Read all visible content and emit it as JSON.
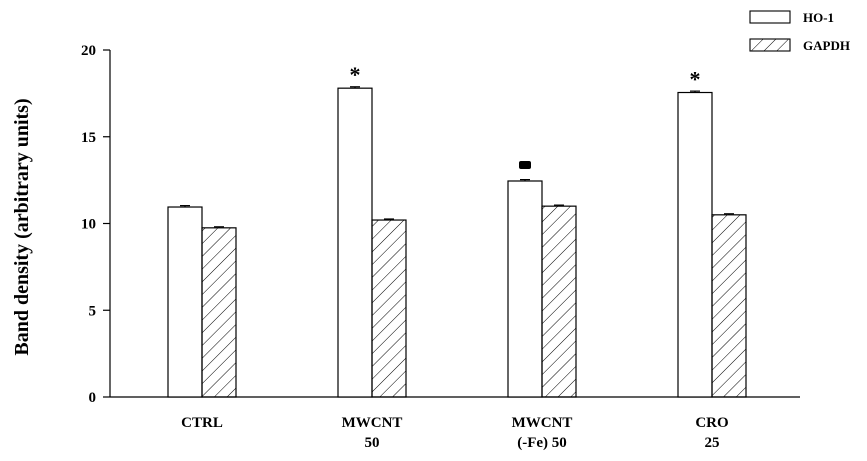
{
  "chart_data": {
    "type": "bar",
    "ylabel": "Band density (arbitrary units)",
    "xlabel": "",
    "ylim": [
      0,
      20
    ],
    "yticks": [
      0,
      5,
      10,
      15,
      20
    ],
    "categories": [
      [
        "CTRL"
      ],
      [
        "MWCNT",
        "50"
      ],
      [
        "MWCNT",
        "(-Fe) 50"
      ],
      [
        "CRO",
        "25"
      ]
    ],
    "series": [
      {
        "name": "HO-1",
        "values": [
          10.95,
          17.8,
          12.45,
          17.55
        ],
        "errors": [
          0.08,
          0.08,
          0.08,
          0.08
        ],
        "pattern": "open"
      },
      {
        "name": "GAPDH",
        "values": [
          9.75,
          10.2,
          11.0,
          10.5
        ],
        "errors": [
          0.06,
          0.06,
          0.06,
          0.06
        ],
        "pattern": "hatched"
      }
    ],
    "markers": [
      "",
      "*",
      "■",
      "*"
    ],
    "legend_position": "top-right",
    "grid": false
  }
}
